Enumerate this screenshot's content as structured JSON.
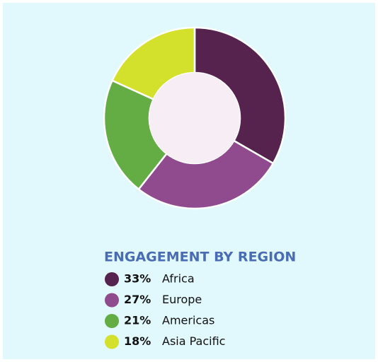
{
  "chart_data": {
    "type": "donut",
    "title": "ENGAGEMENT BY REGION",
    "categories": [
      "Africa",
      "Europe",
      "Americas",
      "Asia Pacific"
    ],
    "values": [
      33,
      27,
      21,
      18
    ],
    "value_labels": [
      "33%",
      "27%",
      "21%",
      "18%"
    ],
    "colors": [
      "#56234f",
      "#904a8e",
      "#63ad44",
      "#d3e02c"
    ]
  }
}
